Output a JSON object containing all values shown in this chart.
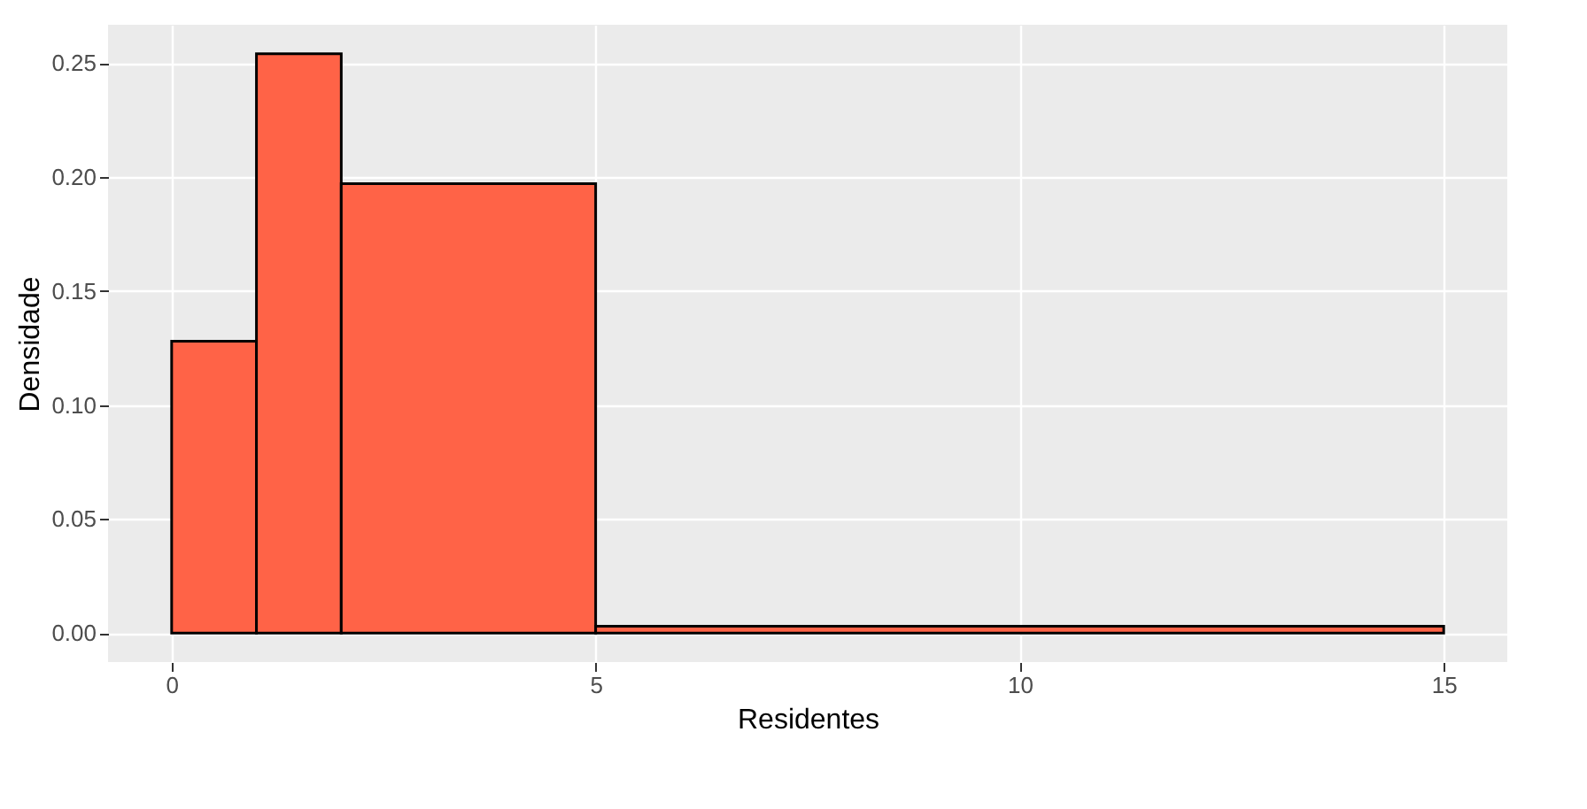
{
  "chart_data": {
    "type": "histogram",
    "xlabel": "Residentes",
    "ylabel": "Densidade",
    "bins": [
      0,
      1,
      2,
      5,
      15
    ],
    "values": [
      0.128,
      0.254,
      0.197,
      0.003
    ],
    "color": "#ff6347",
    "xlim": [
      -0.75,
      15.75
    ],
    "xticks": [
      0,
      5,
      10,
      15
    ],
    "ylim": [
      -0.0127,
      0.2667
    ],
    "yticks": [
      {
        "value": 0,
        "label": "0.00"
      },
      {
        "value": 0.05,
        "label": "0.05"
      },
      {
        "value": 0.1,
        "label": "0.10"
      },
      {
        "value": 0.15,
        "label": "0.15"
      },
      {
        "value": 0.2,
        "label": "0.20"
      },
      {
        "value": 0.25,
        "label": "0.25"
      }
    ],
    "grid": true
  }
}
